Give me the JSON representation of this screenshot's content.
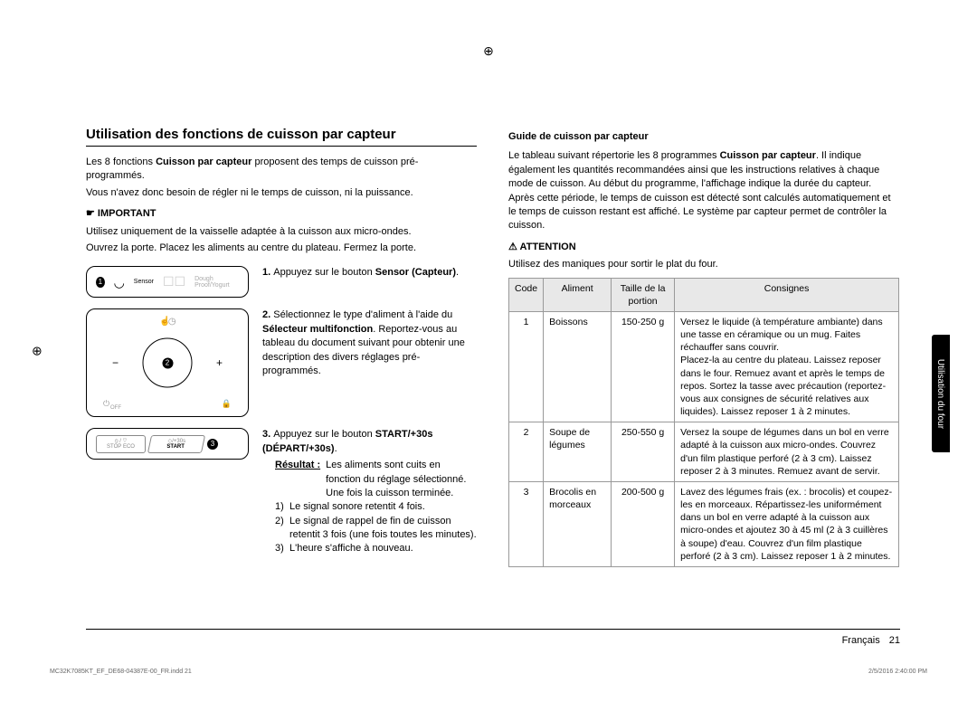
{
  "left": {
    "title": "Utilisation des fonctions de cuisson par capteur",
    "intro1a": "Les 8 fonctions ",
    "intro1b": "Cuisson par capteur",
    "intro1c": " proposent des temps de cuisson pré-programmés.",
    "intro2": "Vous n'avez donc besoin de régler ni le temps de cuisson, ni la puissance.",
    "important_label": "IMPORTANT",
    "important1": "Utilisez uniquement de la vaisselle adaptée à la cuisson aux micro-ondes.",
    "important2": "Ouvrez la porte. Placez les aliments au centre du plateau. Fermez la porte.",
    "step1a": "1. ",
    "step1b": "Appuyez sur le bouton ",
    "step1c": "Sensor (Capteur)",
    "step1d": ".",
    "step2a": "2. ",
    "step2b": "Sélectionnez le type d'aliment à l'aide du ",
    "step2c": "Sélecteur multifonction",
    "step2d": ". Reportez-vous au tableau du document suivant pour obtenir une description des divers réglages pré-programmés.",
    "step3a": "3. ",
    "step3b": "Appuyez sur le bouton ",
    "step3c": "START/+30s (DÉPART/+30s)",
    "step3d": ".",
    "result_label": "Résultat :",
    "result_text": "Les aliments sont cuits en fonction du réglage sélectionné. Une fois la cuisson terminée.",
    "r1": "Le signal sonore retentit 4 fois.",
    "r2": "Le signal de rappel de fin de cuisson retentit 3 fois (une fois toutes les minutes).",
    "r3": "L'heure s'affiche à nouveau.",
    "d1_sensor": "Sensor",
    "d1_ghost": "Dough Proof/Yogurt",
    "d2_off": "OFF",
    "d3_stop": "STOP",
    "d3_eco": "ECO",
    "d3_30s": "/+30s",
    "d3_start": "START"
  },
  "right": {
    "guide_title": "Guide de cuisson par capteur",
    "guide_p1a": "Le tableau suivant répertorie les 8 programmes ",
    "guide_p1b": "Cuisson par capteur",
    "guide_p1c": ". Il indique également les quantités recommandées ainsi que les instructions relatives à chaque mode de cuisson. Au début du programme, l'affichage indique la durée du capteur. Après cette période, le temps de cuisson est détecté sont calculés automatiquement et le temps de cuisson restant est affiché. Le système par capteur permet de contrôler la cuisson.",
    "attention_label": "ATTENTION",
    "attention_text": "Utilisez des maniques pour sortir le plat du four.",
    "th_code": "Code",
    "th_food": "Aliment",
    "th_size": "Taille de la portion",
    "th_instr": "Consignes",
    "rows": [
      {
        "code": "1",
        "food": "Boissons",
        "size": "150-250 g",
        "instr": "Versez le liquide (à température ambiante) dans une tasse en céramique ou un mug. Faites réchauffer sans couvrir.\nPlacez-la au centre du plateau. Laissez reposer dans le four. Remuez avant et après le temps de repos. Sortez la tasse avec précaution (reportez-vous aux consignes de sécurité relatives aux liquides). Laissez reposer 1 à 2 minutes."
      },
      {
        "code": "2",
        "food": "Soupe de légumes",
        "size": "250-550 g",
        "instr": "Versez la soupe de légumes dans un bol en verre adapté à la cuisson aux micro-ondes. Couvrez d'un film plastique perforé (2 à 3 cm). Laissez reposer 2 à 3 minutes. Remuez avant de servir."
      },
      {
        "code": "3",
        "food": "Brocolis en morceaux",
        "size": "200-500 g",
        "instr": "Lavez des légumes frais (ex. : brocolis) et coupez-les en morceaux. Répartissez-les uniformément dans un bol en verre adapté à la cuisson aux micro-ondes et ajoutez 30 à 45 ml (2 à 3 cuillères à soupe) d'eau. Couvrez d'un film plastique perforé (2 à 3 cm). Laissez reposer 1 à 2 minutes."
      }
    ]
  },
  "side_tab": "Utilisation du four",
  "footer": {
    "lang": "Français",
    "page": "21",
    "doc": "MC32K7085KT_EF_DE68-04387E-00_FR.indd   21",
    "ts": "2/5/2016   2:40:00 PM"
  }
}
